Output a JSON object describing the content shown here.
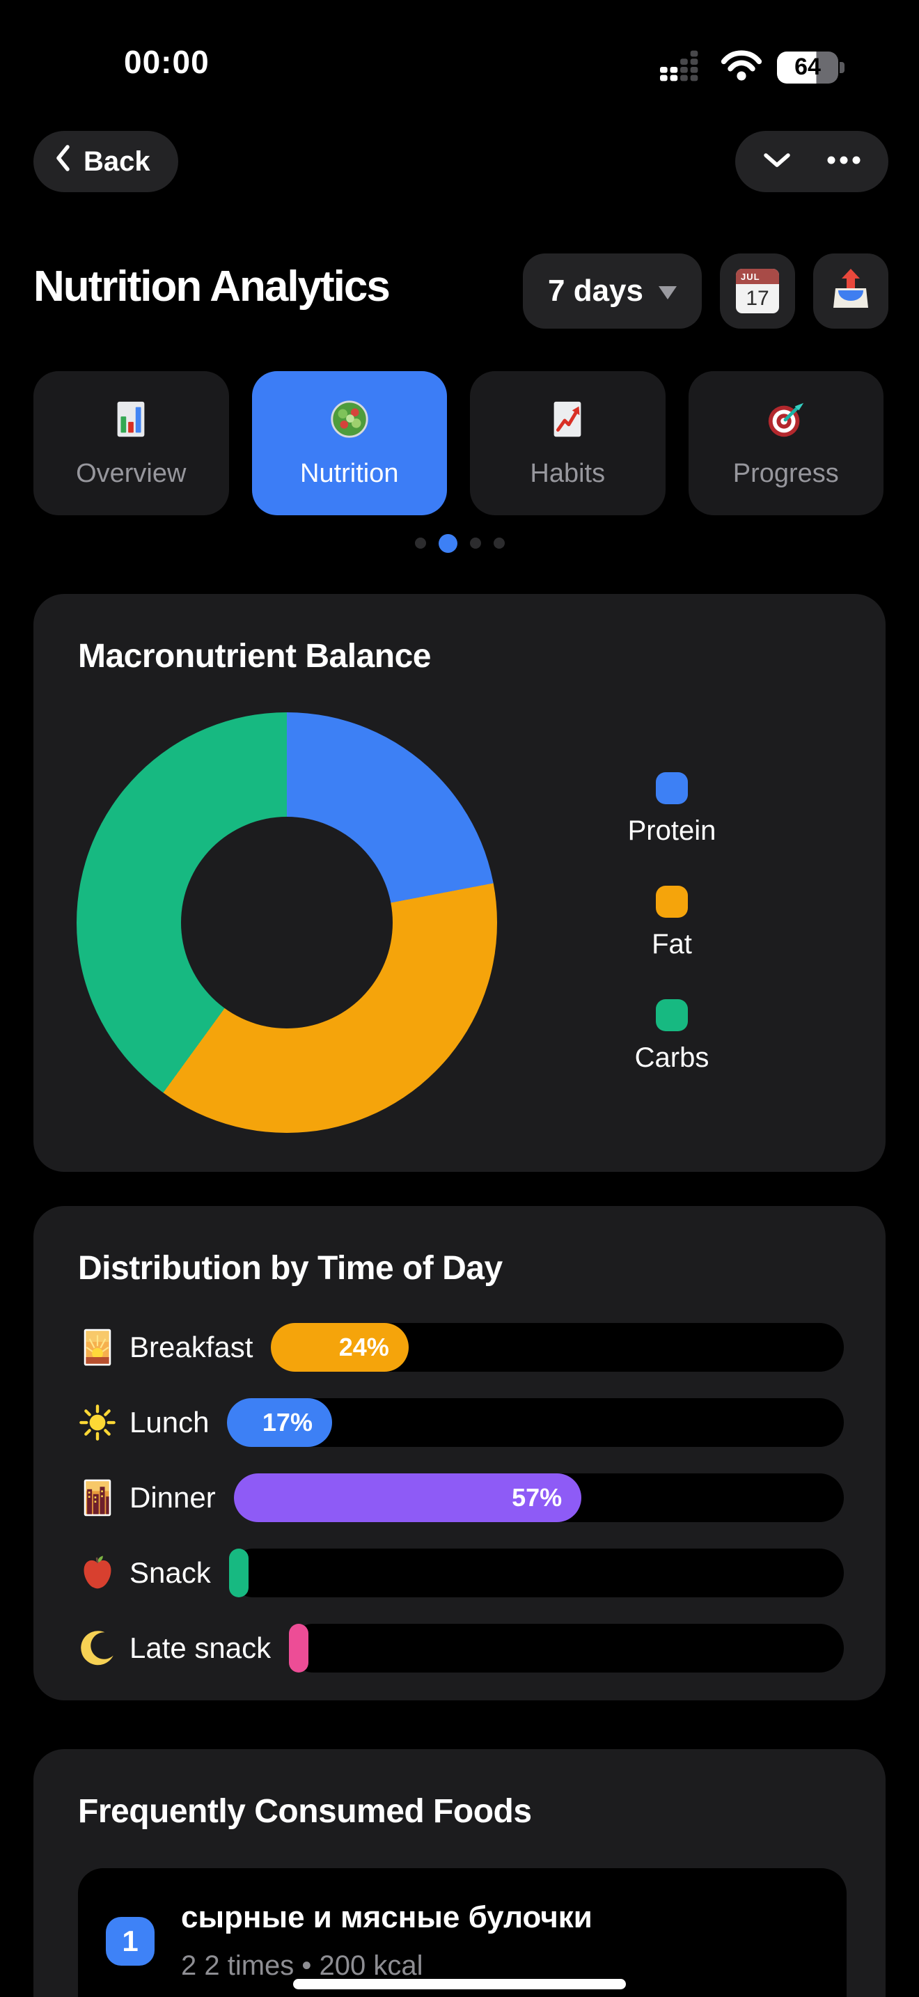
{
  "status_bar": {
    "time": "00:00",
    "battery_level": 64,
    "battery_text": "64"
  },
  "nav": {
    "back_label": "Back"
  },
  "header": {
    "title": "Nutrition Analytics",
    "range_selector": "7 days",
    "calendar_month": "JUL",
    "calendar_day": "17"
  },
  "tabs": [
    {
      "label": "Overview",
      "icon": "bar-chart-emoji",
      "active": false
    },
    {
      "label": "Nutrition",
      "icon": "salad-emoji",
      "active": true
    },
    {
      "label": "Habits",
      "icon": "chart-up-emoji",
      "active": false
    },
    {
      "label": "Progress",
      "icon": "target-emoji",
      "active": false
    }
  ],
  "pager": {
    "count": 4,
    "active_index": 1
  },
  "macro_card": {
    "title": "Macronutrient Balance",
    "legend": [
      {
        "label": "Protein",
        "color": "#3d80f5"
      },
      {
        "label": "Fat",
        "color": "#f5a40b"
      },
      {
        "label": "Carbs",
        "color": "#17b981"
      }
    ]
  },
  "time_card": {
    "title": "Distribution by Time of Day",
    "rows": [
      {
        "icon": "sunrise-emoji",
        "label": "Breakfast",
        "percent": 24,
        "percent_label": "24%",
        "color": "#f5a40b"
      },
      {
        "icon": "sun-emoji",
        "label": "Lunch",
        "percent": 17,
        "percent_label": "17%",
        "color": "#3d80f5"
      },
      {
        "icon": "city-dusk-emoji",
        "label": "Dinner",
        "percent": 57,
        "percent_label": "57%",
        "color": "#8e5bf6"
      },
      {
        "icon": "apple-emoji",
        "label": "Snack",
        "percent": 1,
        "percent_label": "",
        "color": "#17b981"
      },
      {
        "icon": "moon-emoji",
        "label": "Late snack",
        "percent": 1,
        "percent_label": "",
        "color": "#ed4d96"
      }
    ]
  },
  "foods_card": {
    "title": "Frequently Consumed Foods",
    "items": [
      {
        "rank": "1",
        "name": "сырные и мясные булочки",
        "meta": "2 2 times • 200 kcal"
      }
    ]
  },
  "chart_data": [
    {
      "type": "pie",
      "variant": "donut",
      "title": "Macronutrient Balance",
      "labels": [
        "Protein",
        "Fat",
        "Carbs"
      ],
      "values": [
        22,
        38,
        40
      ],
      "unit": "percent (estimated from arc angles, no numeric labels shown)",
      "colors": [
        "#3d80f5",
        "#f5a40b",
        "#17b981"
      ],
      "legend_position": "right",
      "start_angle_deg": 0,
      "direction": "clockwise"
    },
    {
      "type": "bar",
      "orientation": "horizontal",
      "title": "Distribution by Time of Day",
      "categories": [
        "Breakfast",
        "Lunch",
        "Dinner",
        "Snack",
        "Late snack"
      ],
      "values": [
        24,
        17,
        57,
        1,
        1
      ],
      "value_labels": [
        "24%",
        "17%",
        "57%",
        "",
        ""
      ],
      "colors": [
        "#f5a40b",
        "#3d80f5",
        "#8e5bf6",
        "#17b981",
        "#ed4d96"
      ],
      "xlim": [
        0,
        100
      ],
      "grid": false
    }
  ]
}
